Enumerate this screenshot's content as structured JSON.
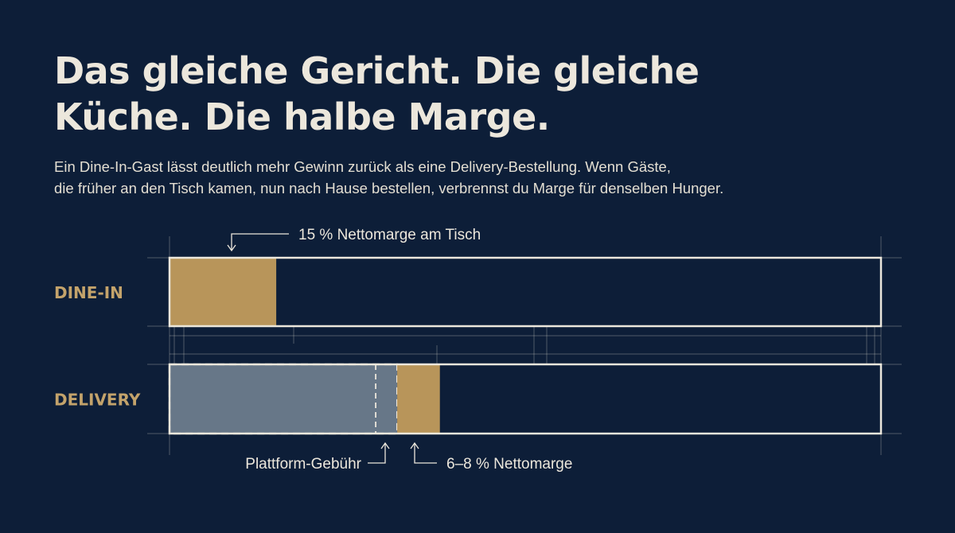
{
  "title_lines": [
    "Das gleiche Gericht. Die gleiche",
    "Küche. Die halbe Marge."
  ],
  "subtitle_lines": [
    "Ein Dine-In-Gast lässt deutlich mehr Gewinn zurück als eine Delivery-Bestellung. Wenn Gäste,",
    "die früher an den Tisch kamen, nun nach Hause bestellen, verbrennst du Marge für denselben Hunger."
  ],
  "colors": {
    "background": "#0d1e38",
    "margin_fill": "#b8955a",
    "platform_fill": "#6f7f8f",
    "frame": "#ece7dc",
    "category_label": "#c3a36b",
    "text": "#ece7dc"
  },
  "chart_data": {
    "type": "bar",
    "orientation": "horizontal",
    "xlim": [
      0,
      100
    ],
    "categories": [
      "DINE-IN",
      "DELIVERY"
    ],
    "series": [
      {
        "values": [
          0,
          32
        ]
      },
      {
        "values": [
          15,
          6
        ]
      }
    ],
    "annotations": [
      {
        "text": "15 % Nettomarge am Tisch",
        "category": "DINE-IN"
      },
      {
        "text": "Plattform-Gebühr",
        "category": "DELIVERY"
      },
      {
        "text": "6–8 % Nettomarge",
        "category": "DELIVERY"
      }
    ]
  }
}
